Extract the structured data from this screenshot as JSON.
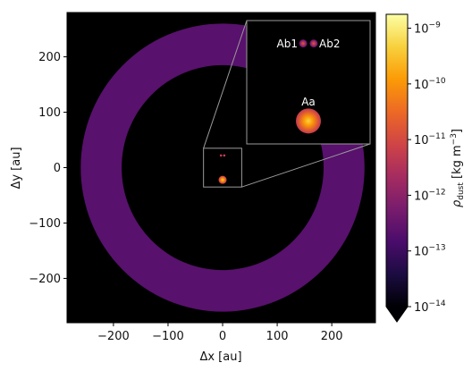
{
  "chart_data": {
    "type": "heatmap",
    "title": "",
    "xlabel": "Δx [au]",
    "ylabel": "Δy [au]",
    "xlim": [
      -285,
      280
    ],
    "ylim": [
      -280,
      280
    ],
    "xticks": [
      -200,
      -100,
      0,
      100,
      200
    ],
    "yticks": [
      -200,
      -100,
      0,
      100,
      200
    ],
    "xtick_labels": [
      "−200",
      "−100",
      "0",
      "100",
      "200"
    ],
    "ytick_labels": [
      "−200",
      "−100",
      "0",
      "100",
      "200"
    ],
    "grid": false,
    "background_color": "#000000",
    "ring": {
      "center": [
        0,
        0
      ],
      "inner_radius_au": 185,
      "outer_radius_au": 260,
      "log_density_inner": -12.62,
      "log_density_outer": -12.7
    },
    "stars": [
      {
        "name": "Aa",
        "x": 0,
        "y": -22,
        "log_peak_density": -9.3
      },
      {
        "name": "Ab1",
        "x": -3,
        "y": 22,
        "log_peak_density": -10.7
      },
      {
        "name": "Ab2",
        "x": 3,
        "y": 22,
        "log_peak_density": -10.7
      }
    ],
    "inset": {
      "region_x": [
        -35,
        35
      ],
      "region_y": [
        -35,
        35
      ],
      "labels": [
        "Ab1",
        "Ab2",
        "Aa"
      ]
    },
    "colorbar": {
      "label": "ρdust [kg m−3]",
      "label_main": "ρ",
      "label_sub": "dust",
      "label_unit_base": " [kg m",
      "label_unit_sup": "−3",
      "label_unit_end": "]",
      "scale": "log",
      "range_log10": [
        -14,
        -8.75
      ],
      "ticks_log10": [
        -14,
        -13,
        -12,
        -11,
        -10,
        -9
      ],
      "tick_labels": [
        {
          "base": "10",
          "exp": "−14"
        },
        {
          "base": "10",
          "exp": "−13"
        },
        {
          "base": "10",
          "exp": "−12"
        },
        {
          "base": "10",
          "exp": "−11"
        },
        {
          "base": "10",
          "exp": "−10"
        },
        {
          "base": "10",
          "exp": "−9"
        }
      ],
      "extend": "min",
      "colormap": "inferno",
      "colormap_stops": [
        "#000004",
        "#1b0c41",
        "#4a0c6b",
        "#781c6d",
        "#a52c60",
        "#cf4446",
        "#ed6925",
        "#fb9b06",
        "#f7d13d",
        "#fcffa4"
      ]
    }
  }
}
